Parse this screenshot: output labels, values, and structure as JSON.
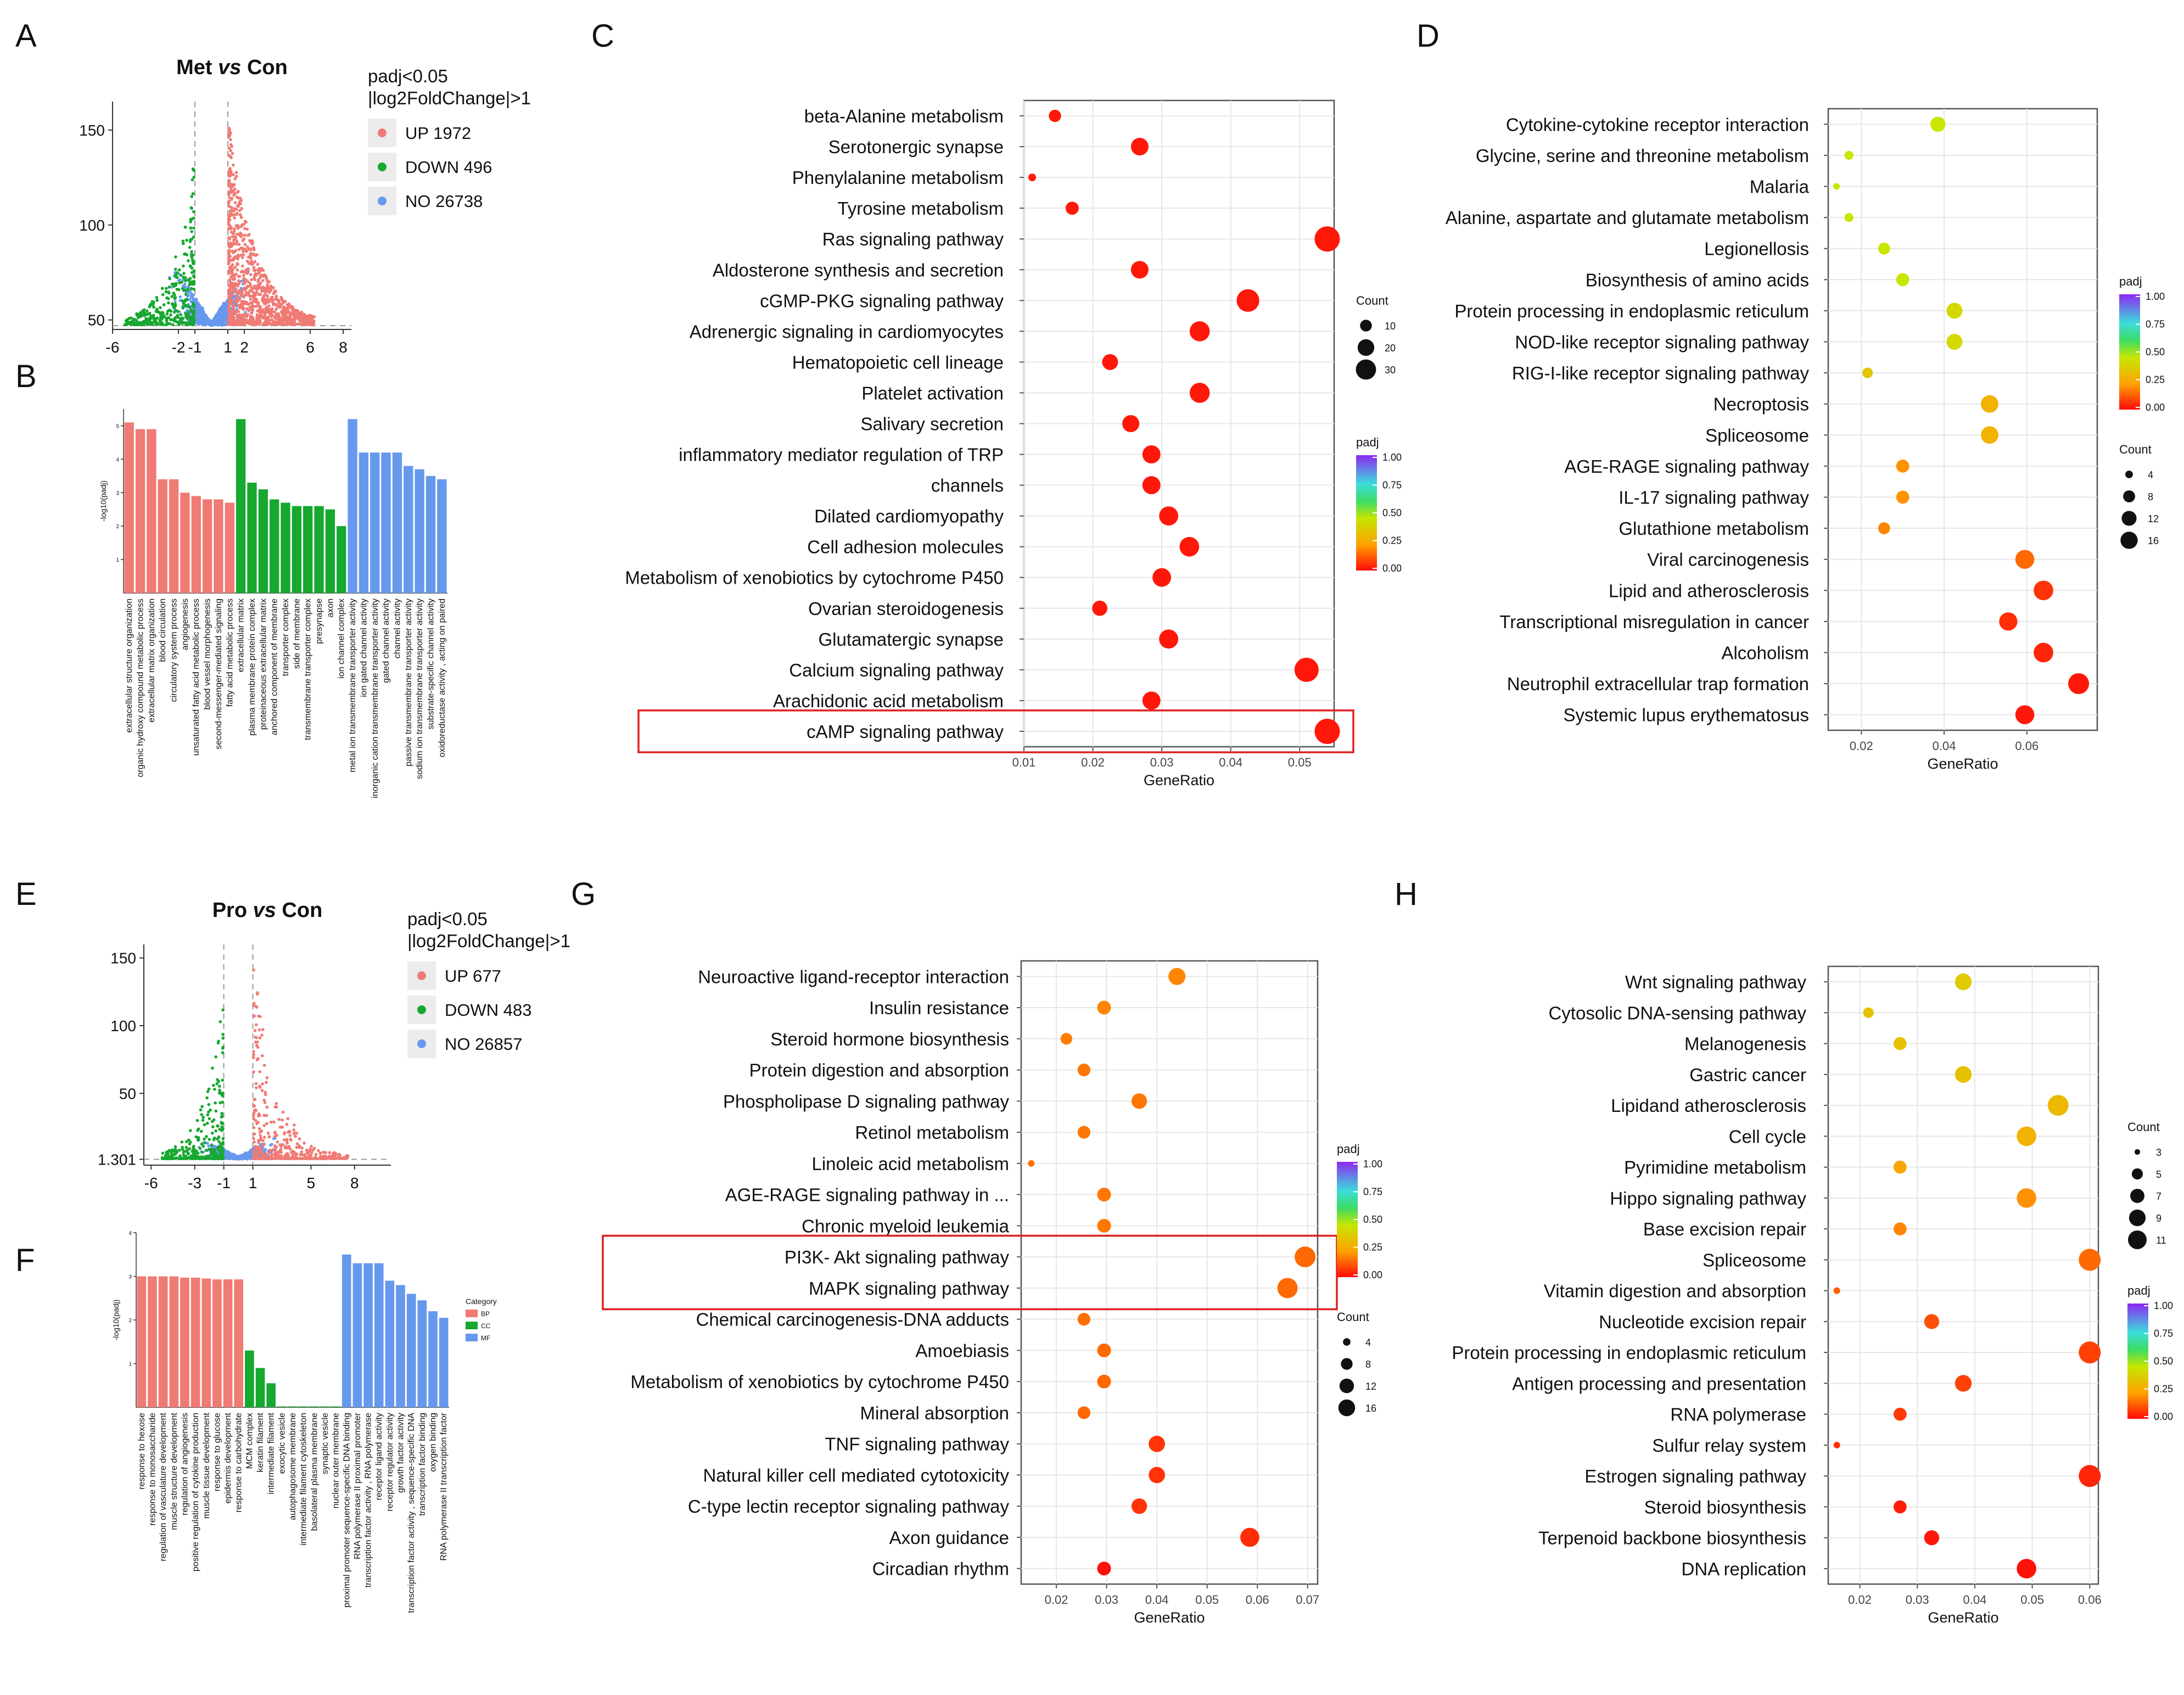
{
  "panel_letters": [
    "A",
    "B",
    "C",
    "D",
    "E",
    "F",
    "G",
    "H"
  ],
  "colors": {
    "up": "#f07a74",
    "down": "#16a82f",
    "no": "#6699ee",
    "box": "#e02020"
  },
  "chart_data": [
    {
      "panel": "A",
      "type": "scatter",
      "title": "Met vs Con",
      "title_main": "Met",
      "title_vs": "vs",
      "title_con": "Con",
      "legend_title": [
        "padj<0.05",
        "|log2FoldChange|>1"
      ],
      "legend": [
        {
          "label": "UP 1972",
          "color": "up"
        },
        {
          "label": "DOWN 496",
          "color": "down"
        },
        {
          "label": "NO 26738",
          "color": "no"
        }
      ],
      "xlim": [
        -6,
        8.5
      ],
      "ylim": [
        45,
        165
      ],
      "xticks": [
        -6,
        -2,
        -1,
        1,
        2,
        6,
        8
      ],
      "xtick_labels": [
        "-6",
        "-2",
        "-1",
        "1",
        "2",
        "6",
        "8"
      ],
      "yticks": [
        50,
        100,
        150
      ],
      "ytick_labels": [
        "50",
        "100",
        "150"
      ],
      "vlines": [
        -1,
        1
      ],
      "hline": 47,
      "up_count": 1972,
      "down_count": 496,
      "no_count": 26738
    },
    {
      "panel": "B",
      "type": "bar",
      "ylabel": "-log10(padj)",
      "ylim": [
        0,
        5.5
      ],
      "categories": [
        "extracellular structure organization",
        "organic hydroxy compound metabolic process",
        "extracellular matrix organization",
        "blood circulation",
        "circulatory system process",
        "angiogenesis",
        "unsaturated fatty acid metabolic process",
        "blood vessel morphogenesis",
        "second-messenger-mediated signaling",
        "fatty acid metabolic process",
        "extracellular matrix",
        "plasma membrane protein complex",
        "proteinaceous extracellular matrix",
        "anchored component of membrane",
        "transporter complex",
        "side of membrane",
        "transmembrane transporter complex",
        "presynapse",
        "axon",
        "ion channel complex",
        "metal ion transmembrane transporter activity",
        "ion gated channel activity",
        "inorganic cation transmembrane transporter activity",
        "gated channel activity",
        "channel activity",
        "passive transmembrane transporter activity",
        "sodium ion transmembrane transporter activity",
        "substrate-specific channel activity",
        "oxidoreductase activity , acting on paired"
      ],
      "values": [
        5.1,
        4.9,
        4.9,
        3.4,
        3.4,
        3.0,
        2.9,
        2.8,
        2.8,
        2.7,
        5.2,
        3.3,
        3.1,
        2.8,
        2.7,
        2.6,
        2.6,
        2.6,
        2.5,
        2.0,
        5.2,
        4.2,
        4.2,
        4.2,
        4.2,
        3.8,
        3.7,
        3.5,
        3.4
      ],
      "groups": [
        "up",
        "up",
        "up",
        "up",
        "up",
        "up",
        "up",
        "up",
        "up",
        "up",
        "down",
        "down",
        "down",
        "down",
        "down",
        "down",
        "down",
        "down",
        "down",
        "down",
        "no",
        "no",
        "no",
        "no",
        "no",
        "no",
        "no",
        "no",
        "no"
      ]
    },
    {
      "panel": "C",
      "type": "scatter",
      "xlabel": "GeneRatio",
      "xlim": [
        0.01,
        0.055
      ],
      "xticks": [
        0.01,
        0.02,
        0.03,
        0.04,
        0.05
      ],
      "xtick_labels": [
        "0.01",
        "0.02",
        "0.03",
        "0.04",
        "0.05"
      ],
      "count_title": "Count",
      "count_ticks": [
        10,
        20,
        30
      ],
      "size_range": [
        8,
        40
      ],
      "padj_title": "padj",
      "padj_ticks": [
        "1.00",
        "0.75",
        "0.50",
        "0.25",
        "0.00"
      ],
      "categories": [
        "beta-Alanine metabolism",
        "Serotonergic synapse",
        "Phenylalanine metabolism",
        "Tyrosine metabolism",
        "Ras signaling pathway",
        "Aldosterone synthesis and secretion",
        "cGMP-PKG signaling pathway",
        "Adrenergic signaling in cardiomyocytes",
        "Hematopoietic cell lineage",
        "Platelet activation",
        "Salivary secretion",
        "inflammatory mediator regulation of TRP",
        "channels",
        "Dilated cardiomyopathy",
        "Cell adhesion molecules",
        "Metabolism of xenobiotics by cytochrome P450",
        "Ovarian steroidogenesis",
        "Glutamatergic synapse",
        "Calcium signaling pathway",
        "Arachidonic acid metabolism",
        "cAMP signaling pathway"
      ],
      "x": [
        0.0145,
        0.0268,
        0.0112,
        0.017,
        0.054,
        0.0268,
        0.0425,
        0.0355,
        0.0225,
        0.0355,
        0.0255,
        0.0285,
        0.0285,
        0.031,
        0.034,
        0.03,
        0.021,
        0.031,
        0.051,
        0.0285,
        0.054
      ],
      "count": [
        8,
        16,
        4,
        9,
        34,
        16,
        27,
        21,
        13,
        21,
        15,
        17,
        17,
        19,
        20,
        18,
        12,
        19,
        31,
        17,
        34
      ],
      "padj": [
        0.02,
        0.02,
        0.02,
        0.02,
        0.02,
        0.02,
        0.02,
        0.02,
        0.02,
        0.02,
        0.02,
        0.02,
        0.02,
        0.02,
        0.02,
        0.02,
        0.02,
        0.02,
        0.02,
        0.02,
        0.02
      ],
      "highlight": [
        "cAMP signaling pathway"
      ]
    },
    {
      "panel": "D",
      "type": "scatter",
      "xlabel": "GeneRatio",
      "xlim": [
        0.012,
        0.077
      ],
      "xticks": [
        0.02,
        0.04,
        0.06
      ],
      "xtick_labels": [
        "0.02",
        "0.04",
        "0.06"
      ],
      "count_title": "Count",
      "count_ticks": [
        4,
        8,
        12,
        16
      ],
      "size_range": [
        6,
        32
      ],
      "padj_title": "padj",
      "padj_ticks": [
        "1.00",
        "0.75",
        "0.50",
        "0.25",
        "0.00"
      ],
      "categories": [
        "Cytokine-cytokine receptor interaction",
        "Glycine, serine and threonine metabolism",
        "Malaria",
        "Alanine, aspartate and glutamate metabolism",
        "Legionellosis",
        "Biosynthesis of amino acids",
        "Protein processing in endoplasmic reticulum",
        "NOD-like receptor signaling pathway",
        "RIG-I-like receptor signaling pathway",
        "Necroptosis",
        "Spliceosome",
        "AGE-RAGE signaling pathway",
        "IL-17 signaling pathway",
        "Glutathione metabolism",
        "Viral carcinogenesis",
        "Lipid and atherosclerosis",
        "Transcriptional misregulation in cancer",
        "Alcoholism",
        "Neutrophil extracellular trap formation",
        "Systemic lupus erythematosus"
      ],
      "x": [
        0.0385,
        0.017,
        0.014,
        0.017,
        0.0255,
        0.03,
        0.0425,
        0.0425,
        0.0215,
        0.051,
        0.051,
        0.03,
        0.03,
        0.0255,
        0.0595,
        0.064,
        0.0555,
        0.064,
        0.0725,
        0.0595
      ],
      "count": [
        9,
        4,
        3,
        4,
        6,
        7,
        10,
        10,
        5,
        12,
        12,
        7,
        7,
        6,
        14,
        15,
        13,
        15,
        17,
        14
      ],
      "padj": [
        0.45,
        0.45,
        0.45,
        0.45,
        0.45,
        0.45,
        0.4,
        0.4,
        0.35,
        0.28,
        0.28,
        0.2,
        0.2,
        0.18,
        0.14,
        0.06,
        0.05,
        0.04,
        0.02,
        0.02
      ]
    },
    {
      "panel": "E",
      "type": "scatter",
      "title": "Pro vs Con",
      "title_main": "Pro",
      "title_vs": "vs",
      "title_con": "Con",
      "legend_title": [
        "padj<0.05",
        "|log2FoldChange|>1"
      ],
      "legend": [
        {
          "label": "UP 677",
          "color": "up"
        },
        {
          "label": "DOWN 483",
          "color": "down"
        },
        {
          "label": "NO 26857",
          "color": "no"
        }
      ],
      "xlim": [
        -6.5,
        10.5
      ],
      "ylim": [
        -3,
        160
      ],
      "xticks": [
        -6,
        -3,
        -1,
        1,
        5,
        8
      ],
      "xtick_labels": [
        "-6",
        "-3",
        "-1",
        "1",
        "5",
        "8"
      ],
      "yticks": [
        1.301,
        50,
        100,
        150
      ],
      "ytick_labels": [
        "1.301",
        "50",
        "100",
        "150"
      ],
      "vlines": [
        -1,
        1
      ],
      "hline": 1.301,
      "up_count": 677,
      "down_count": 483,
      "no_count": 26857
    },
    {
      "panel": "F",
      "type": "bar",
      "ylabel": "-log10(padj)",
      "ylim": [
        0,
        4
      ],
      "legend_title": "Category",
      "legend": [
        {
          "label": "BP",
          "color": "up"
        },
        {
          "label": "CC",
          "color": "down"
        },
        {
          "label": "MF",
          "color": "no"
        }
      ],
      "categories": [
        "response to hexose",
        "response to monosaccharide",
        "regulation of vasculature development",
        "muscle structure development",
        "regulation of angiogenesis",
        "positive regulation of cytokine production",
        "muscle tissue development",
        "response to glucose",
        "epidermis development",
        "response to carbohydrate",
        "MCM complex",
        "keratin filament",
        "intermediate filament",
        "exocytic vesicle",
        "autophagosome membrane",
        "intermediate filament cytoskeleton",
        "basolateral plasma membrane",
        "synaptic vesicle",
        "nuclear outer membrane",
        "proximal promoter sequence-specific DNA binding",
        "RNA polymerase II proximal promoter",
        "transcription factor activity , RNA polymerase",
        "receptor ligand activity",
        "receptor regulator activity",
        "growth factor activity",
        "transcription factor activity , sequence-specific DNA",
        "transcription factor binding",
        "oxygen binding",
        "RNA polymerase II transcription factor"
      ],
      "values": [
        3.0,
        3.0,
        3.0,
        3.0,
        2.97,
        2.97,
        2.95,
        2.93,
        2.93,
        2.93,
        1.3,
        0.9,
        0.55,
        0.02,
        0.02,
        0.02,
        0.02,
        0.02,
        0.02,
        3.5,
        3.3,
        3.3,
        3.3,
        2.9,
        2.8,
        2.6,
        2.45,
        2.2,
        2.05
      ],
      "groups": [
        "up",
        "up",
        "up",
        "up",
        "up",
        "up",
        "up",
        "up",
        "up",
        "up",
        "down",
        "down",
        "down",
        "down",
        "down",
        "down",
        "down",
        "down",
        "down",
        "no",
        "no",
        "no",
        "no",
        "no",
        "no",
        "no",
        "no",
        "no",
        "no"
      ]
    },
    {
      "panel": "G",
      "type": "scatter",
      "xlabel": "GeneRatio",
      "xlim": [
        0.013,
        0.072
      ],
      "xticks": [
        0.02,
        0.03,
        0.04,
        0.05,
        0.06,
        0.07
      ],
      "xtick_labels": [
        "0.02",
        "0.03",
        "0.04",
        "0.05",
        "0.06",
        "0.07"
      ],
      "count_title": "Count",
      "count_ticks": [
        4,
        8,
        12,
        16
      ],
      "size_range": [
        6,
        32
      ],
      "padj_title": "padj",
      "padj_ticks": [
        "1.00",
        "0.75",
        "0.50",
        "0.25",
        "0.00"
      ],
      "categories": [
        "Neuroactive ligand-receptor interaction",
        "Insulin resistance",
        "Steroid hormone biosynthesis",
        "Protein digestion and absorption",
        "Phospholipase D signaling pathway",
        "Retinol metabolism",
        "Linoleic acid metabolism",
        "AGE-RAGE signaling pathway in ...",
        "Chronic myeloid leukemia",
        "PI3K- Akt signaling pathway",
        "MAPK signaling pathway",
        "Chemical carcinogenesis-DNA adducts",
        "Amoebiasis",
        "Metabolism of xenobiotics by cytochrome P450",
        "Mineral absorption",
        "TNF signaling pathway",
        "Natural killer cell mediated cytotoxicity",
        "C-type lectin receptor signaling pathway",
        "Axon guidance",
        "Circadian rhythm"
      ],
      "x": [
        0.044,
        0.0295,
        0.022,
        0.0255,
        0.0365,
        0.0255,
        0.015,
        0.0295,
        0.0295,
        0.0695,
        0.066,
        0.0255,
        0.0295,
        0.0295,
        0.0255,
        0.04,
        0.04,
        0.0365,
        0.0585,
        0.0295
      ],
      "count": [
        12,
        8,
        6,
        7,
        10,
        7,
        3,
        8,
        8,
        18,
        17,
        7,
        8,
        8,
        7,
        11,
        11,
        10,
        15,
        8
      ],
      "padj": [
        0.18,
        0.18,
        0.17,
        0.16,
        0.16,
        0.16,
        0.15,
        0.16,
        0.16,
        0.14,
        0.14,
        0.15,
        0.14,
        0.14,
        0.14,
        0.06,
        0.06,
        0.06,
        0.05,
        0.01
      ],
      "highlight": [
        "PI3K- Akt signaling pathway",
        "MAPK signaling pathway"
      ]
    },
    {
      "panel": "H",
      "type": "scatter",
      "xlabel": "GeneRatio",
      "xlim": [
        0.0145,
        0.0615
      ],
      "xticks": [
        0.02,
        0.03,
        0.04,
        0.05,
        0.06
      ],
      "xtick_labels": [
        "0.02",
        "0.03",
        "0.04",
        "0.05",
        "0.06"
      ],
      "count_title": "Count",
      "count_ticks": [
        3,
        5,
        7,
        9,
        11
      ],
      "size_range": [
        6,
        34
      ],
      "padj_title": "padj",
      "padj_ticks": [
        "1.00",
        "0.75",
        "0.50",
        "0.25",
        "0.00"
      ],
      "categories": [
        "Wnt signaling pathway",
        "Cytosolic DNA-sensing pathway",
        "Melanogenesis",
        "Gastric cancer",
        "Lipidand atherosclerosis",
        "Cell cycle",
        "Pyrimidine metabolism",
        "Hippo signaling pathway",
        "Base excision repair",
        "Spliceosome",
        "Vitamin digestion and absorption",
        "Nucleotide excision repair",
        "Protein processing in endoplasmic reticulum",
        "Antigen processing and presentation",
        "RNA polymerase",
        "Sulfur relay system",
        "Estrogen signaling pathway",
        "Steroid biosynthesis",
        "Terpenoid backbone biosynthesis",
        "DNA replication"
      ],
      "x": [
        0.038,
        0.0215,
        0.027,
        0.038,
        0.0545,
        0.049,
        0.027,
        0.049,
        0.027,
        0.06,
        0.016,
        0.0325,
        0.06,
        0.038,
        0.027,
        0.016,
        0.06,
        0.027,
        0.0325,
        0.049
      ],
      "count": [
        7,
        4,
        5,
        7,
        10,
        9,
        5,
        9,
        5,
        11,
        3,
        6,
        11,
        7,
        5,
        3,
        11,
        5,
        6,
        9
      ],
      "padj": [
        0.36,
        0.33,
        0.33,
        0.33,
        0.3,
        0.28,
        0.24,
        0.2,
        0.18,
        0.14,
        0.12,
        0.1,
        0.08,
        0.08,
        0.07,
        0.06,
        0.04,
        0.03,
        0.02,
        0.01
      ]
    }
  ]
}
